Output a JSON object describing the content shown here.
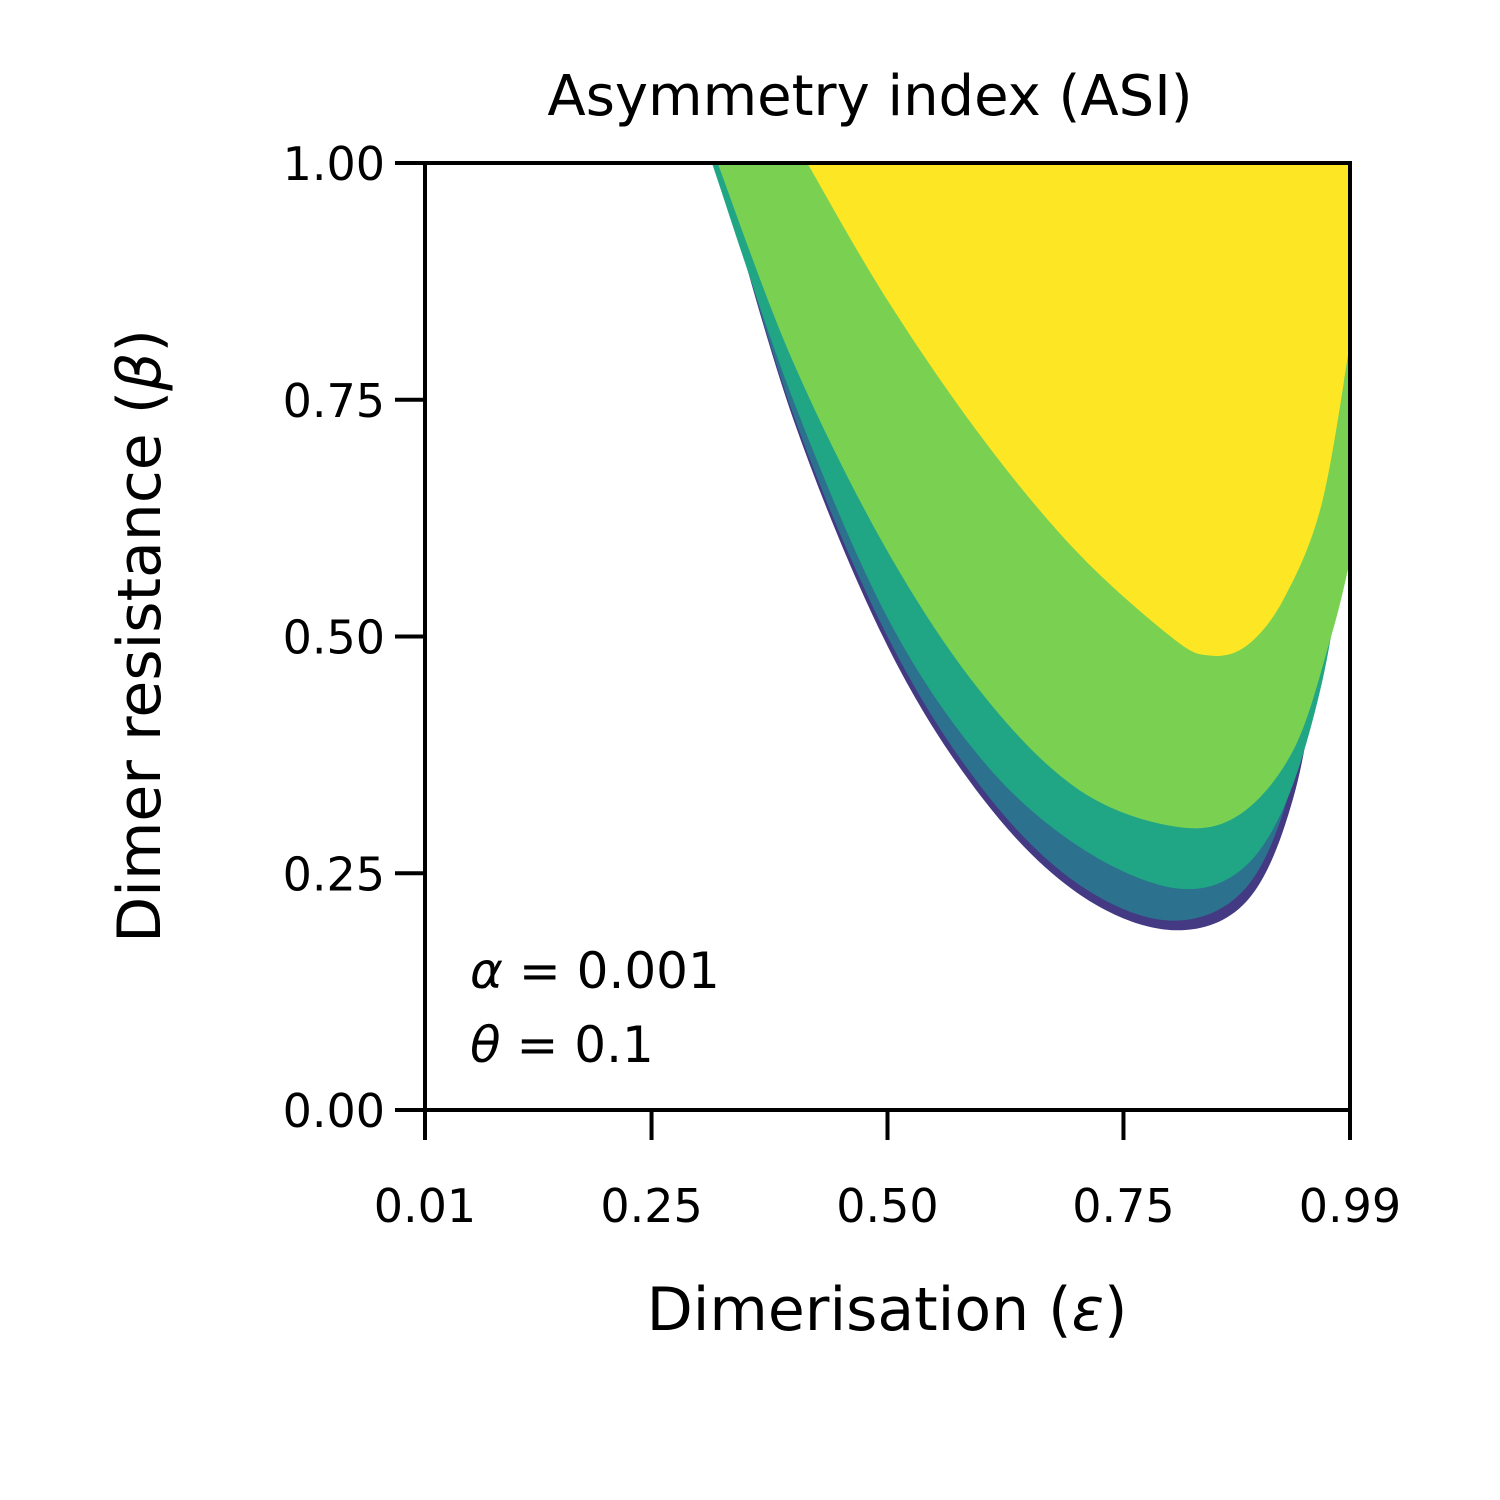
{
  "chart_data": {
    "type": "filled-contour",
    "title": "Asymmetry index (ASI)",
    "xlabel": {
      "text": "Dimerisation (",
      "symbol": "ε",
      "close": ")"
    },
    "ylabel": {
      "text": "Dimer resistance (",
      "symbol": "β",
      "close": ")"
    },
    "xlim": [
      0.01,
      0.99
    ],
    "ylim": [
      0.0,
      1.0
    ],
    "xticks": [
      0.01,
      0.25,
      0.5,
      0.75,
      0.99
    ],
    "xtick_labels": [
      "0.01",
      "0.25",
      "0.50",
      "0.75",
      "0.99"
    ],
    "yticks": [
      0.0,
      0.25,
      0.5,
      0.75,
      1.0
    ],
    "ytick_labels": [
      "0.00",
      "0.25",
      "0.50",
      "0.75",
      "1.00"
    ],
    "grid": false,
    "legend": "none",
    "annotations": [
      {
        "symbol": "α",
        "text": " = 0.001"
      },
      {
        "symbol": "θ",
        "text": " = 0.1"
      }
    ],
    "levels": [
      {
        "color": "#443a83",
        "boundary": [
          [
            0.32,
            1.0
          ],
          [
            0.4,
            0.73
          ],
          [
            0.5,
            0.49
          ],
          [
            0.6,
            0.33
          ],
          [
            0.7,
            0.23
          ],
          [
            0.8,
            0.19
          ],
          [
            0.88,
            0.22
          ],
          [
            0.93,
            0.33
          ],
          [
            0.96,
            0.5
          ],
          [
            0.98,
            0.69
          ],
          [
            0.99,
            1.0
          ]
        ]
      },
      {
        "color": "#2c728e",
        "boundary": [
          [
            0.32,
            1.0
          ],
          [
            0.4,
            0.735
          ],
          [
            0.5,
            0.5
          ],
          [
            0.6,
            0.34
          ],
          [
            0.7,
            0.24
          ],
          [
            0.8,
            0.2
          ],
          [
            0.88,
            0.235
          ],
          [
            0.93,
            0.35
          ],
          [
            0.96,
            0.52
          ],
          [
            0.98,
            0.7
          ],
          [
            0.988,
            1.0
          ]
        ]
      },
      {
        "color": "#21a685",
        "boundary": [
          [
            0.314,
            1.0
          ],
          [
            0.4,
            0.75
          ],
          [
            0.5,
            0.52
          ],
          [
            0.6,
            0.37
          ],
          [
            0.7,
            0.28
          ],
          [
            0.8,
            0.235
          ],
          [
            0.87,
            0.25
          ],
          [
            0.92,
            0.32
          ],
          [
            0.96,
            0.45
          ],
          [
            0.985,
            0.6
          ],
          [
            0.99,
            0.65
          ]
        ]
      },
      {
        "color": "#7ad151",
        "boundary": [
          [
            0.32,
            1.0
          ],
          [
            0.4,
            0.79
          ],
          [
            0.5,
            0.59
          ],
          [
            0.6,
            0.44
          ],
          [
            0.7,
            0.34
          ],
          [
            0.8,
            0.3
          ],
          [
            0.87,
            0.31
          ],
          [
            0.93,
            0.38
          ],
          [
            0.97,
            0.5
          ],
          [
            0.99,
            0.58
          ]
        ]
      },
      {
        "color": "#fde725",
        "boundary": [
          [
            0.415,
            1.0
          ],
          [
            0.5,
            0.855
          ],
          [
            0.6,
            0.71
          ],
          [
            0.7,
            0.59
          ],
          [
            0.8,
            0.5
          ],
          [
            0.84,
            0.48
          ],
          [
            0.88,
            0.49
          ],
          [
            0.92,
            0.54
          ],
          [
            0.96,
            0.64
          ],
          [
            0.99,
            0.81
          ]
        ]
      }
    ]
  }
}
